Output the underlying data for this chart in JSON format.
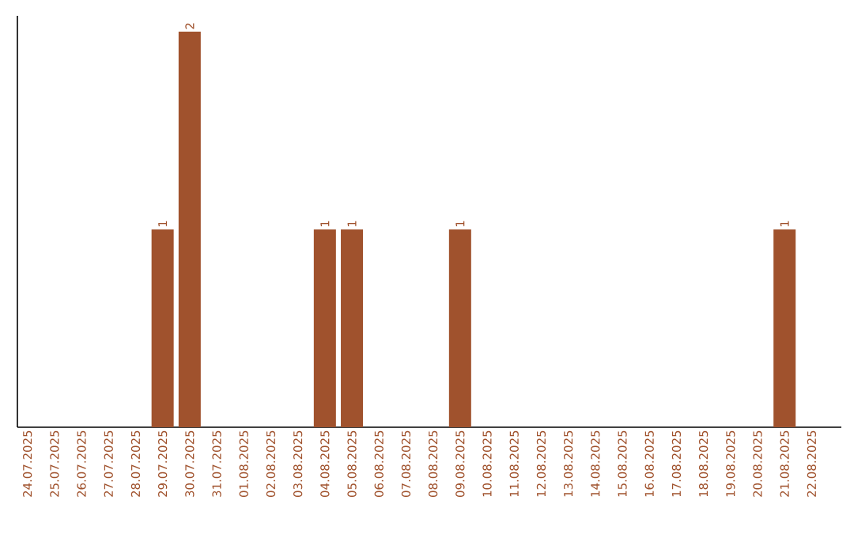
{
  "chart_data": {
    "type": "bar",
    "categories": [
      "24.07.2025",
      "25.07.2025",
      "26.07.2025",
      "27.07.2025",
      "28.07.2025",
      "29.07.2025",
      "30.07.2025",
      "31.07.2025",
      "01.08.2025",
      "02.08.2025",
      "03.08.2025",
      "04.08.2025",
      "05.08.2025",
      "06.08.2025",
      "07.08.2025",
      "08.08.2025",
      "09.08.2025",
      "10.08.2025",
      "11.08.2025",
      "12.08.2025",
      "13.08.2025",
      "14.08.2025",
      "15.08.2025",
      "16.08.2025",
      "17.08.2025",
      "18.08.2025",
      "19.08.2025",
      "20.08.2025",
      "21.08.2025",
      "22.08.2025"
    ],
    "values": [
      0,
      0,
      0,
      0,
      0,
      1,
      2,
      0,
      0,
      0,
      0,
      1,
      1,
      0,
      0,
      0,
      1,
      0,
      0,
      0,
      0,
      0,
      0,
      0,
      0,
      0,
      0,
      0,
      1,
      0
    ],
    "value_labels": [
      null,
      null,
      null,
      null,
      null,
      "1",
      "2",
      null,
      null,
      null,
      null,
      "1",
      "1",
      null,
      null,
      null,
      "1",
      null,
      null,
      null,
      null,
      null,
      null,
      null,
      null,
      null,
      null,
      null,
      "1",
      null
    ],
    "color": "#a0522d",
    "tick_labels": "x"
  }
}
